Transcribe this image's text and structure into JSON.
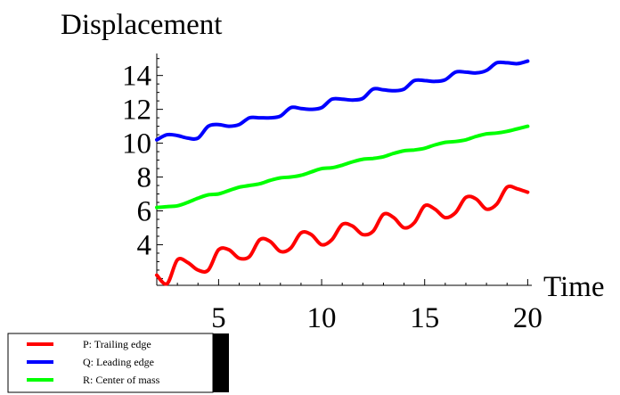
{
  "chart_data": {
    "type": "line",
    "xlabel": "Time",
    "ylabel": "Displacement",
    "xlim": [
      2,
      20.2
    ],
    "ylim": [
      1.6,
      15.3
    ],
    "x_ticks": [
      5,
      10,
      15,
      20
    ],
    "y_ticks": [
      4,
      6,
      8,
      10,
      12,
      14
    ],
    "grid": false,
    "legend_position": "bottom-left",
    "series": [
      {
        "name": "P: Trailing edge",
        "color": "#ff0000",
        "x": [
          2.0,
          2.5,
          3.0,
          3.5,
          4.0,
          4.5,
          5.0,
          5.5,
          6.0,
          6.5,
          7.0,
          7.5,
          8.0,
          8.5,
          9.0,
          9.5,
          10.0,
          10.5,
          11.0,
          11.5,
          12.0,
          12.5,
          13.0,
          13.5,
          14.0,
          14.5,
          15.0,
          15.5,
          16.0,
          16.5,
          17.0,
          17.5,
          18.0,
          18.5,
          19.0,
          19.5,
          20.0
        ],
        "y": [
          2.2,
          1.7,
          3.1,
          2.95,
          2.5,
          2.5,
          3.7,
          3.7,
          3.2,
          3.3,
          4.3,
          4.2,
          3.6,
          3.8,
          4.7,
          4.6,
          4.0,
          4.3,
          5.2,
          5.1,
          4.6,
          4.8,
          5.8,
          5.6,
          5.0,
          5.3,
          6.3,
          6.1,
          5.6,
          5.9,
          6.8,
          6.7,
          6.1,
          6.4,
          7.4,
          7.3,
          7.1
        ]
      },
      {
        "name": "Q: Leading edge",
        "color": "#0000ff",
        "x": [
          2.0,
          2.5,
          3.0,
          3.5,
          4.0,
          4.5,
          5.0,
          5.5,
          6.0,
          6.5,
          7.0,
          7.5,
          8.0,
          8.5,
          9.0,
          9.5,
          10.0,
          10.5,
          11.0,
          11.5,
          12.0,
          12.5,
          13.0,
          13.5,
          14.0,
          14.5,
          15.0,
          15.5,
          16.0,
          16.5,
          17.0,
          17.5,
          18.0,
          18.5,
          19.0,
          19.5,
          20.0
        ],
        "y": [
          10.2,
          10.5,
          10.45,
          10.3,
          10.3,
          11.0,
          11.1,
          11.0,
          11.1,
          11.5,
          11.5,
          11.5,
          11.6,
          12.1,
          12.05,
          12.0,
          12.1,
          12.6,
          12.6,
          12.55,
          12.65,
          13.2,
          13.15,
          13.1,
          13.2,
          13.7,
          13.7,
          13.65,
          13.75,
          14.2,
          14.2,
          14.15,
          14.3,
          14.75,
          14.75,
          14.7,
          14.85
        ]
      },
      {
        "name": "R: Center of mass",
        "color": "#00ff00",
        "x": [
          2.0,
          2.5,
          3.0,
          3.5,
          4.0,
          4.5,
          5.0,
          5.5,
          6.0,
          6.5,
          7.0,
          7.5,
          8.0,
          8.5,
          9.0,
          9.5,
          10.0,
          10.5,
          11.0,
          11.5,
          12.0,
          12.5,
          13.0,
          13.5,
          14.0,
          14.5,
          15.0,
          15.5,
          16.0,
          16.5,
          17.0,
          17.5,
          18.0,
          18.5,
          19.0,
          19.5,
          20.0
        ],
        "y": [
          6.2,
          6.25,
          6.3,
          6.5,
          6.75,
          6.95,
          7.0,
          7.2,
          7.4,
          7.5,
          7.6,
          7.8,
          7.95,
          8.0,
          8.1,
          8.3,
          8.5,
          8.55,
          8.7,
          8.9,
          9.05,
          9.1,
          9.2,
          9.4,
          9.55,
          9.6,
          9.7,
          9.9,
          10.05,
          10.1,
          10.2,
          10.4,
          10.55,
          10.6,
          10.7,
          10.85,
          11.0
        ]
      }
    ]
  }
}
